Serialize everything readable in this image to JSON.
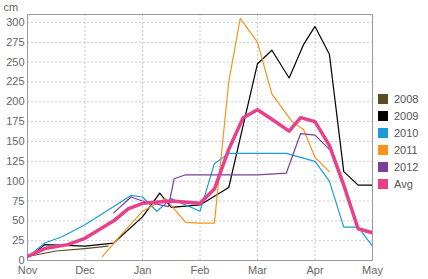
{
  "chart_data": {
    "type": "line",
    "y_label": "cm",
    "xlim": [
      0,
      6
    ],
    "xticks": [
      {
        "value": 0,
        "label": "Nov"
      },
      {
        "value": 1,
        "label": "Dec"
      },
      {
        "value": 2,
        "label": "Jan"
      },
      {
        "value": 3,
        "label": "Feb"
      },
      {
        "value": 4,
        "label": "Mar"
      },
      {
        "value": 5,
        "label": "Apr"
      },
      {
        "value": 6,
        "label": "May"
      }
    ],
    "ylim": [
      0,
      310
    ],
    "yticks": [
      0,
      25,
      50,
      75,
      100,
      125,
      150,
      175,
      200,
      225,
      250,
      275,
      300
    ],
    "grid": true,
    "legend": "right",
    "series": [
      {
        "name": "2008",
        "color": "#5a4d22",
        "line_style": "solid",
        "x": [
          0,
          0.5,
          1,
          1.4
        ],
        "values": [
          5,
          12,
          15,
          18
        ]
      },
      {
        "name": "2009",
        "color": "#000000",
        "line_style": "solid",
        "x": [
          0.1,
          0.3,
          1,
          1.5,
          2,
          2.3,
          2.5,
          3,
          3.5,
          4,
          4.25,
          4.55,
          4.8,
          5,
          5.25,
          5.5,
          5.75,
          6
        ],
        "values": [
          8,
          20,
          18,
          22,
          55,
          85,
          67,
          70,
          92,
          248,
          265,
          230,
          272,
          295,
          260,
          112,
          95,
          95
        ]
      },
      {
        "name": "2010",
        "color": "#1a9bd7",
        "line_style": "solid",
        "x": [
          0.1,
          0.3,
          0.6,
          1,
          1.5,
          1.8,
          2,
          2.25,
          2.5,
          3,
          3.25,
          3.5,
          4,
          4.5,
          5,
          5.25,
          5.5,
          5.75,
          6
        ],
        "values": [
          10,
          22,
          30,
          45,
          68,
          82,
          80,
          62,
          78,
          62,
          122,
          135,
          135,
          135,
          125,
          100,
          42,
          42,
          18
        ]
      },
      {
        "name": "2011",
        "color": "#f7941d",
        "line_style": "solid",
        "x": [
          1.3,
          1.6,
          2,
          2.4,
          2.75,
          3,
          3.25,
          3.5,
          3.7,
          4,
          4.25,
          4.6,
          4.8,
          5,
          5.25
        ],
        "values": [
          5,
          30,
          62,
          78,
          48,
          47,
          47,
          225,
          305,
          275,
          210,
          175,
          165,
          130,
          112
        ]
      },
      {
        "name": "2012",
        "color": "#7b3f99",
        "line_style": "solid",
        "x": [
          1.5,
          1.8,
          2,
          2.45,
          2.55,
          2.75,
          3,
          3.5,
          4,
          4.5,
          4.75,
          5,
          5.25
        ],
        "values": [
          60,
          80,
          75,
          68,
          103,
          108,
          108,
          108,
          108,
          110,
          160,
          158,
          140
        ]
      },
      {
        "name": "Avg",
        "color": "#e8408a",
        "line_style": "thick",
        "x": [
          0,
          0.3,
          0.7,
          1,
          1.5,
          1.75,
          2,
          2.5,
          3,
          3.25,
          3.5,
          3.75,
          4,
          4.25,
          4.55,
          4.75,
          5,
          5.25,
          5.5,
          5.75,
          6
        ],
        "values": [
          5,
          15,
          20,
          28,
          50,
          65,
          72,
          75,
          72,
          90,
          140,
          180,
          190,
          178,
          163,
          180,
          175,
          145,
          95,
          40,
          35
        ]
      }
    ]
  }
}
